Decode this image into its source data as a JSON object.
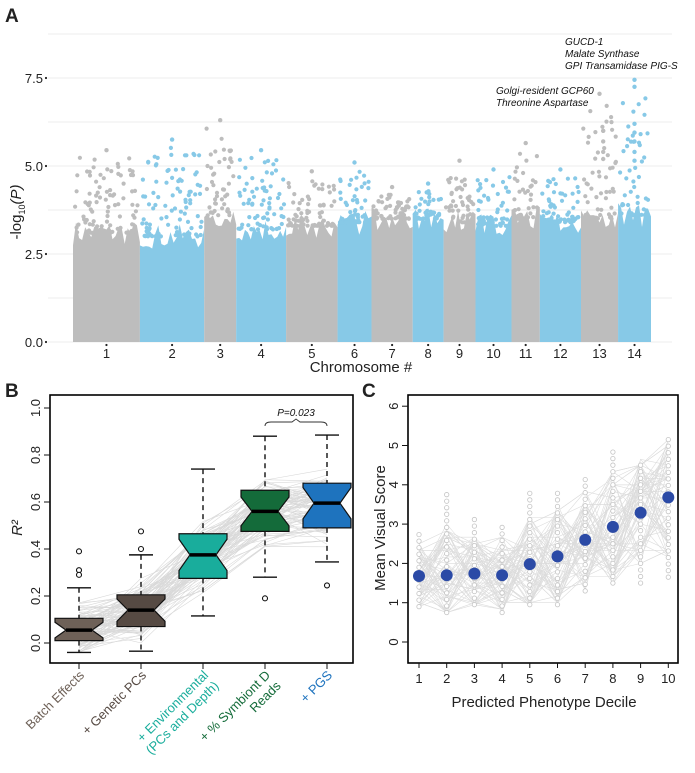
{
  "panels": {
    "a": "A",
    "b": "B",
    "c": "C"
  },
  "chart_data": [
    {
      "panel": "A",
      "type": "scatter",
      "subtype": "manhattan",
      "xlabel": "Chromosome #",
      "ylabel": "-log10(P)",
      "ylabel_parts": {
        "pre": "-log",
        "sub": "10",
        "post": "(P)"
      },
      "ylim": [
        0,
        8.9
      ],
      "yticks": [
        0.0,
        2.5,
        5.0,
        7.5
      ],
      "ytick_labels": [
        "0.0",
        "2.5",
        "5.0",
        "7.5"
      ],
      "grid": true,
      "colors": {
        "odd": "#bdbdbd",
        "even": "#87c9e7"
      },
      "chromosomes": [
        {
          "label": "1",
          "rel_size": 1.3,
          "fill_top": 3.1,
          "peak": 5.45
        },
        {
          "label": "2",
          "rel_size": 1.25,
          "fill_top": 3.0,
          "peak": 5.75
        },
        {
          "label": "3",
          "rel_size": 0.62,
          "fill_top": 3.6,
          "peak": 6.3
        },
        {
          "label": "4",
          "rel_size": 0.97,
          "fill_top": 3.2,
          "peak": 5.45
        },
        {
          "label": "5",
          "rel_size": 1.0,
          "fill_top": 3.3,
          "peak": 4.85
        },
        {
          "label": "6",
          "rel_size": 0.66,
          "fill_top": 3.4,
          "peak": 5.1
        },
        {
          "label": "7",
          "rel_size": 0.8,
          "fill_top": 3.5,
          "peak": 4.4
        },
        {
          "label": "8",
          "rel_size": 0.6,
          "fill_top": 3.5,
          "peak": 4.5
        },
        {
          "label": "9",
          "rel_size": 0.62,
          "fill_top": 3.4,
          "peak": 5.15
        },
        {
          "label": "10",
          "rel_size": 0.7,
          "fill_top": 3.3,
          "peak": 4.9
        },
        {
          "label": "11",
          "rel_size": 0.55,
          "fill_top": 3.5,
          "peak": 5.65
        },
        {
          "label": "12",
          "rel_size": 0.8,
          "fill_top": 3.4,
          "peak": 4.9
        },
        {
          "label": "13",
          "rel_size": 0.72,
          "fill_top": 3.5,
          "peak": 7.05
        },
        {
          "label": "14",
          "rel_size": 0.64,
          "fill_top": 3.6,
          "peak": 7.45
        }
      ],
      "annotations": [
        {
          "chromosome": "13",
          "lines": [
            "Golgi-resident GCP60",
            "Threonine Aspartase"
          ],
          "value": 7.05
        },
        {
          "chromosome": "14",
          "lines": [
            "GUCD-1",
            "Malate Synthase",
            "GPI Transamidase PIG-S"
          ],
          "value": 7.45
        }
      ]
    },
    {
      "panel": "B",
      "type": "box",
      "ylabel": "R²",
      "ylim": [
        -0.06,
        1.08
      ],
      "yticks": [
        0.0,
        0.2,
        0.4,
        0.6,
        0.8,
        1.0
      ],
      "ytick_labels": [
        "0.0",
        "0.2",
        "0.4",
        "0.6",
        "0.8",
        "1.0"
      ],
      "categories": [
        "Batch Effects",
        "+ Genetic PCs",
        "+ Environmental (PCs and Depth)",
        "+ % Symbiont D Reads",
        "+ PGS"
      ],
      "category_lines": [
        [
          "Batch Effects"
        ],
        [
          "+ Genetic PCs"
        ],
        [
          "+ Environmental",
          "(PCs and Depth)"
        ],
        [
          "+ % Symbiont D",
          "Reads"
        ],
        [
          "+ PGS"
        ]
      ],
      "colors": [
        "#6e6158",
        "#564a43",
        "#19ad9c",
        "#146b3a",
        "#1e73be"
      ],
      "boxes": [
        {
          "whisker_low": -0.04,
          "q1": 0.01,
          "median": 0.055,
          "q3": 0.105,
          "whisker_high": 0.235,
          "outliers": [
            0.39,
            0.31,
            0.29
          ]
        },
        {
          "whisker_low": -0.035,
          "q1": 0.07,
          "median": 0.14,
          "q3": 0.205,
          "whisker_high": 0.375,
          "outliers": [
            0.475,
            0.4
          ]
        },
        {
          "whisker_low": 0.115,
          "q1": 0.275,
          "median": 0.375,
          "q3": 0.465,
          "whisker_high": 0.74,
          "outliers": []
        },
        {
          "whisker_low": 0.28,
          "q1": 0.475,
          "median": 0.56,
          "q3": 0.65,
          "whisker_high": 0.88,
          "outliers": [
            0.19
          ]
        },
        {
          "whisker_low": 0.345,
          "q1": 0.49,
          "median": 0.595,
          "q3": 0.68,
          "whisker_high": 0.885,
          "outliers": [
            0.245
          ]
        }
      ],
      "comparison": {
        "from": 3,
        "to": 4,
        "label": "P=0.023"
      }
    },
    {
      "panel": "C",
      "type": "scatter",
      "xlabel": "Predicted Phenotype Decile",
      "ylabel": "Mean Visual Score",
      "ylim": [
        -0.55,
        6.2
      ],
      "yticks": [
        0,
        1,
        2,
        3,
        4,
        5,
        6
      ],
      "ytick_labels": [
        "0",
        "1",
        "2",
        "3",
        "4",
        "5",
        "6"
      ],
      "x": [
        1,
        2,
        3,
        4,
        5,
        6,
        7,
        8,
        9,
        10
      ],
      "xtick_labels": [
        "1",
        "2",
        "3",
        "4",
        "5",
        "6",
        "7",
        "8",
        "9",
        "10"
      ],
      "series": [
        {
          "name": "mean",
          "color": "#2b4aa6",
          "values": [
            1.68,
            1.7,
            1.74,
            1.7,
            1.98,
            2.18,
            2.6,
            2.93,
            3.29,
            3.68
          ]
        },
        {
          "name": "replicates_range",
          "color": "#cfcfcf",
          "min": [
            0.9,
            0.75,
            0.95,
            0.75,
            0.95,
            0.95,
            1.3,
            1.5,
            1.5,
            1.65
          ],
          "max": [
            2.85,
            3.75,
            3.25,
            3.05,
            3.9,
            3.9,
            4.25,
            4.95,
            4.65,
            5.15
          ]
        }
      ]
    }
  ]
}
